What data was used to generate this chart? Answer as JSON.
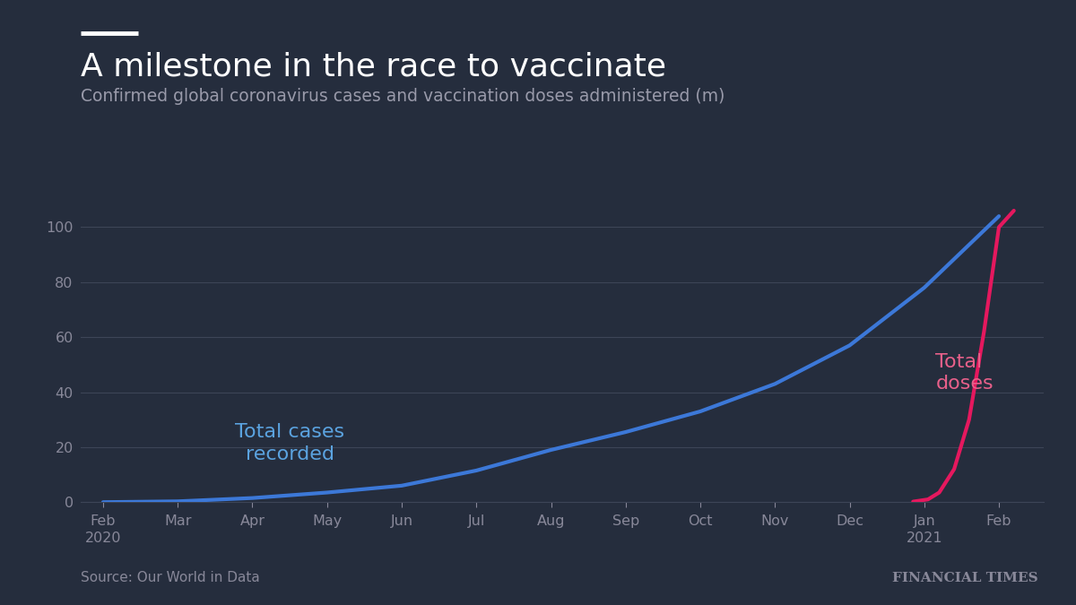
{
  "background_color": "#252d3d",
  "title": "A milestone in the race to vaccinate",
  "subtitle": "Confirmed global coronavirus cases and vaccination doses administered (m)",
  "title_color": "#ffffff",
  "subtitle_color": "#999aaa",
  "source_text": "Source: Our World in Data",
  "brand_text": "FINANCIAL TIMES",
  "footer_color": "#888899",
  "line_color_cases": "#3c78d8",
  "line_color_doses": "#e5185e",
  "label_cases": "Total cases\nrecorded",
  "label_doses": "Total\ndoses",
  "label_cases_color": "#5ba3e0",
  "label_doses_color": "#e8608a",
  "grid_color": "#3d4557",
  "tick_color": "#888899",
  "ylim": [
    0,
    110
  ],
  "yticks": [
    0,
    20,
    40,
    60,
    80,
    100
  ],
  "x_labels": [
    "Feb\n2020",
    "Mar",
    "Apr",
    "May",
    "Jun",
    "Jul",
    "Aug",
    "Sep",
    "Oct",
    "Nov",
    "Dec",
    "Jan\n2021",
    "Feb"
  ],
  "cases_x": [
    0,
    1,
    2,
    3,
    4,
    5,
    6,
    7,
    8,
    9,
    10,
    11,
    12
  ],
  "cases_y": [
    0.0,
    0.3,
    1.5,
    3.5,
    6.0,
    11.5,
    19.0,
    25.5,
    33.0,
    43.0,
    57.0,
    78.0,
    104.0
  ],
  "doses_x": [
    10.85,
    11.05,
    11.2,
    11.4,
    11.6,
    11.8,
    12.0,
    12.2
  ],
  "doses_y": [
    0.2,
    1.0,
    3.5,
    12.0,
    30.0,
    62.0,
    100.0,
    106.0
  ],
  "line_width": 3.0,
  "xlim": [
    -0.3,
    12.6
  ]
}
